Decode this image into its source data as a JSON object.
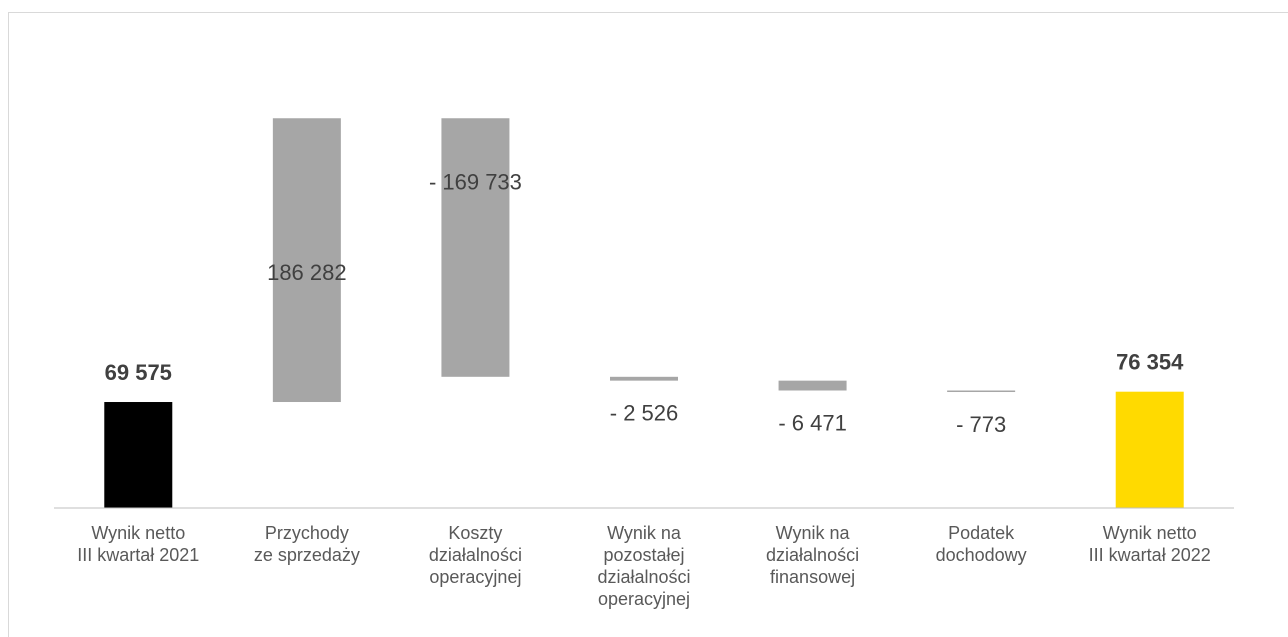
{
  "chart_data": {
    "type": "waterfall",
    "categories": [
      "Wynik netto\nIII kwartał 2021",
      "Przychody\nze sprzedaży",
      "Koszty\ndziałalności\noperacyjnej",
      "Wynik na\npozostałej\ndziałalności\noperacyjnej",
      "Wynik na\ndziałalności\nfinansowej",
      "Podatek\ndochodowy",
      "Wynik netto\nIII kwartał 2022"
    ],
    "values": [
      69575,
      186282,
      -169733,
      -2526,
      -6471,
      -773,
      76354
    ],
    "value_labels": [
      "69 575",
      "186 282",
      "- 169 733",
      "- 2 526",
      "- 6 471",
      "-  773",
      "76 354"
    ],
    "is_total": [
      true,
      false,
      false,
      false,
      false,
      false,
      true
    ],
    "colors": [
      "#000000",
      "#a6a6a6",
      "#a6a6a6",
      "#a6a6a6",
      "#a6a6a6",
      "#a6a6a6",
      "#ffda00"
    ],
    "ylim": [
      0,
      300000
    ]
  }
}
